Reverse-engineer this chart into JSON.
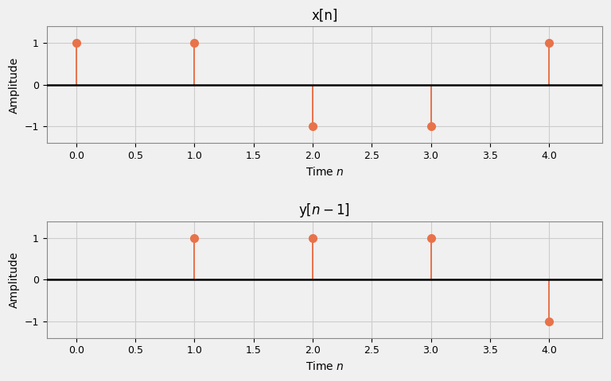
{
  "x_n": {
    "n": [
      0,
      1,
      2,
      3,
      4
    ],
    "values": [
      1,
      1,
      -1,
      -1,
      1
    ],
    "title": "x[n]",
    "xlabel": "Time $n$",
    "ylabel": "Amplitude",
    "xlim": [
      -0.25,
      4.45
    ],
    "ylim": [
      -1.4,
      1.4
    ],
    "yticks": [
      -1,
      0,
      1
    ],
    "xticks": [
      0.0,
      0.5,
      1.0,
      1.5,
      2.0,
      2.5,
      3.0,
      3.5,
      4.0
    ]
  },
  "y_n1": {
    "n": [
      1,
      2,
      3,
      4
    ],
    "values": [
      1,
      1,
      1,
      -1
    ],
    "title": "y[$n-1$]",
    "xlabel": "Time $n$",
    "ylabel": "Amplitude",
    "xlim": [
      -0.25,
      4.45
    ],
    "ylim": [
      -1.4,
      1.4
    ],
    "yticks": [
      -1,
      0,
      1
    ],
    "xticks": [
      0.0,
      0.5,
      1.0,
      1.5,
      2.0,
      2.5,
      3.0,
      3.5,
      4.0
    ]
  },
  "stem_color": "#E8724A",
  "marker_color": "#E8724A",
  "baseline_color": "black",
  "baseline_lw": 1.8,
  "stem_lw": 1.4,
  "marker_size": 7,
  "grid_color": "#cccccc",
  "background_color": "#f0f0f0",
  "title_fontsize": 12,
  "label_fontsize": 10,
  "tick_fontsize": 9
}
